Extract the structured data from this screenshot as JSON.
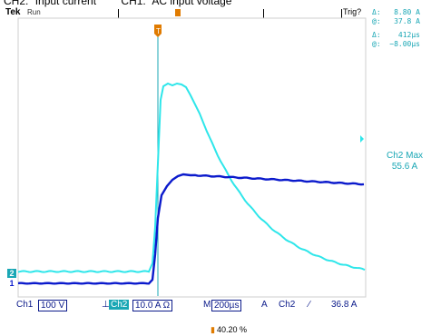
{
  "captions": {
    "ch2": "CH2:",
    "ch2_desc": "Input current",
    "ch1": "CH1:",
    "ch1_desc": "AC input voltage"
  },
  "topbar": {
    "brand": "Tek",
    "state": "Run",
    "trigger": "Trig?"
  },
  "readouts": [
    {
      "label": "Δ:",
      "value": "8.80 A"
    },
    {
      "label": "@:",
      "value": "37.8 A"
    },
    {
      "label": "Δ:",
      "value": "412µs"
    },
    {
      "label": "@:",
      "value": "−8.00µs"
    }
  ],
  "ch2_max": {
    "title": "Ch2 Max",
    "value": "55.6 A"
  },
  "markers": {
    "ch2": "2",
    "ch1": "1",
    "trigger_t": "T"
  },
  "bottom": {
    "ch1": "Ch1",
    "ch1_scale": "100 V",
    "ch2": "Ch2",
    "ch2_scale": "10.0 A Ω",
    "m": "M",
    "timebase": "200µs",
    "trig_symbol": "A",
    "trig_ch": "Ch2",
    "slope": "∕",
    "level": "36.8 A"
  },
  "footer": {
    "value": "40.20 %"
  },
  "colors": {
    "ch1": "#0b1acc",
    "ch2": "#2ee6ea",
    "cursor": "#1aa7b5",
    "trigger": "#e07b00"
  }
}
